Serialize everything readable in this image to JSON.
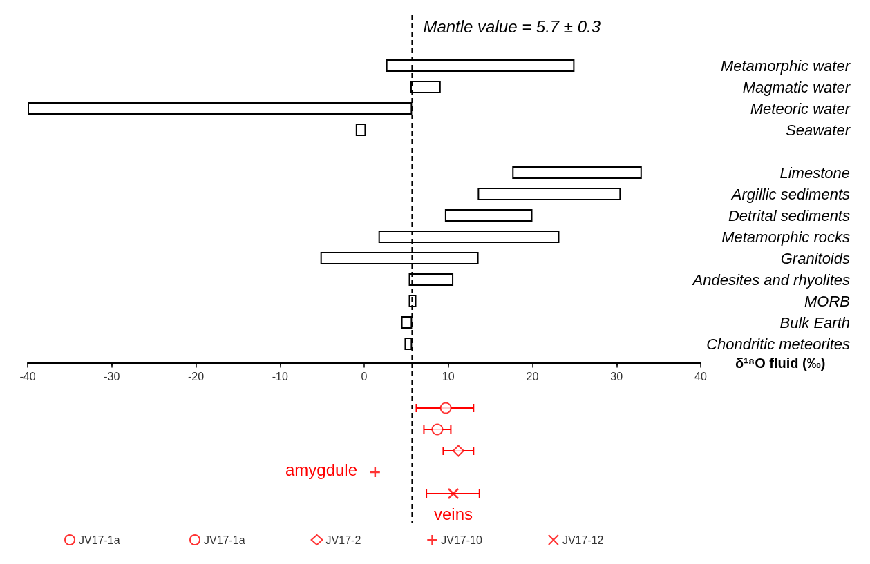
{
  "chart_data": {
    "type": "bar",
    "orientation": "horizontal",
    "xlabel": "δ¹⁸O fluid (‰)",
    "categories": [
      "Metamorphic water",
      "Magmatic water",
      "Meteoric water",
      "Seawater",
      null,
      "Limestone",
      "Argillic sediments",
      "Detrital sediments",
      "Metamorphic rocks",
      "Granitoids",
      "Andesites and rhyolites",
      "MORB",
      "Bulk Earth",
      "Chondritic meteorites",
      null,
      null,
      null,
      null,
      null,
      null,
      null
    ],
    "series": [
      {
        "color": "#ffffff",
        "base": [
          2.6,
          5.5,
          -40,
          -1,
          null,
          17.6,
          13.5,
          9.6,
          1.7,
          -5.2,
          5.3,
          5.3,
          4.4,
          4.8,
          null,
          null,
          null,
          null,
          null,
          null,
          null
        ],
        "values": [
          22.4,
          3.6,
          45.7,
          1.2,
          null,
          15.4,
          17,
          10.4,
          21.5,
          18.8,
          5.3,
          0.9,
          1.3,
          0.9,
          null,
          null,
          null,
          null,
          null,
          null,
          null
        ]
      },
      {
        "type": "scatter",
        "name": "JV17-1a",
        "color": "#ff0000",
        "marker": "circle",
        "values": [
          null,
          null,
          null,
          null,
          null,
          null,
          null,
          null,
          null,
          null,
          null,
          null,
          null,
          null,
          null,
          null,
          9.7,
          null,
          null,
          null,
          null
        ],
        "errors": [
          null,
          null,
          null,
          null,
          null,
          null,
          null,
          null,
          null,
          null,
          null,
          null,
          null,
          null,
          null,
          null,
          [
            6.2,
            13.0
          ],
          null,
          null,
          null,
          null
        ]
      },
      {
        "type": "scatter",
        "name": "JV17-1a",
        "color": "#ff0000",
        "marker": "circle",
        "values": [
          null,
          null,
          null,
          null,
          null,
          null,
          null,
          null,
          null,
          null,
          null,
          null,
          null,
          null,
          null,
          null,
          null,
          8.7,
          null,
          null,
          null
        ],
        "errors": [
          null,
          null,
          null,
          null,
          null,
          null,
          null,
          null,
          null,
          null,
          null,
          null,
          null,
          null,
          null,
          null,
          null,
          [
            7.1,
            10.3
          ],
          null,
          null,
          null
        ]
      },
      {
        "type": "scatter",
        "name": "JV17-2",
        "color": "#ff0000",
        "marker": "diamond",
        "values": [
          null,
          null,
          null,
          null,
          null,
          null,
          null,
          null,
          null,
          null,
          null,
          null,
          null,
          null,
          null,
          null,
          null,
          null,
          11.2,
          null,
          null
        ],
        "errors": [
          null,
          null,
          null,
          null,
          null,
          null,
          null,
          null,
          null,
          null,
          null,
          null,
          null,
          null,
          null,
          null,
          null,
          null,
          [
            9.4,
            13.0
          ],
          null,
          null
        ]
      },
      {
        "type": "scatter",
        "name": "JV17-10",
        "color": "#ff0000",
        "marker": "plus",
        "values": [
          null,
          null,
          null,
          null,
          null,
          null,
          null,
          null,
          null,
          null,
          null,
          null,
          null,
          null,
          null,
          null,
          null,
          null,
          null,
          1.3,
          null
        ]
      },
      {
        "type": "scatter",
        "name": "JV17-12",
        "color": "#ff0000",
        "marker": "cross",
        "values": [
          null,
          null,
          null,
          null,
          null,
          null,
          null,
          null,
          null,
          null,
          null,
          null,
          null,
          null,
          null,
          null,
          null,
          null,
          null,
          null,
          10.6
        ],
        "errors": [
          null,
          null,
          null,
          null,
          null,
          null,
          null,
          null,
          null,
          null,
          null,
          null,
          null,
          null,
          null,
          null,
          null,
          null,
          null,
          null,
          [
            7.4,
            13.7
          ]
        ]
      }
    ],
    "xlim": [
      -40,
      40
    ],
    "xticks": [
      -40,
      -30,
      -20,
      -10,
      0,
      10,
      20,
      30,
      40
    ],
    "ref_lines": [
      {
        "axis": "x",
        "value": 5.7,
        "label": "Mantle value = 5.7 ± 0.3",
        "color": "#000000",
        "line_style": "dashed"
      }
    ],
    "annotations": [
      "amygdule",
      "veins"
    ],
    "legend": "bottom"
  }
}
